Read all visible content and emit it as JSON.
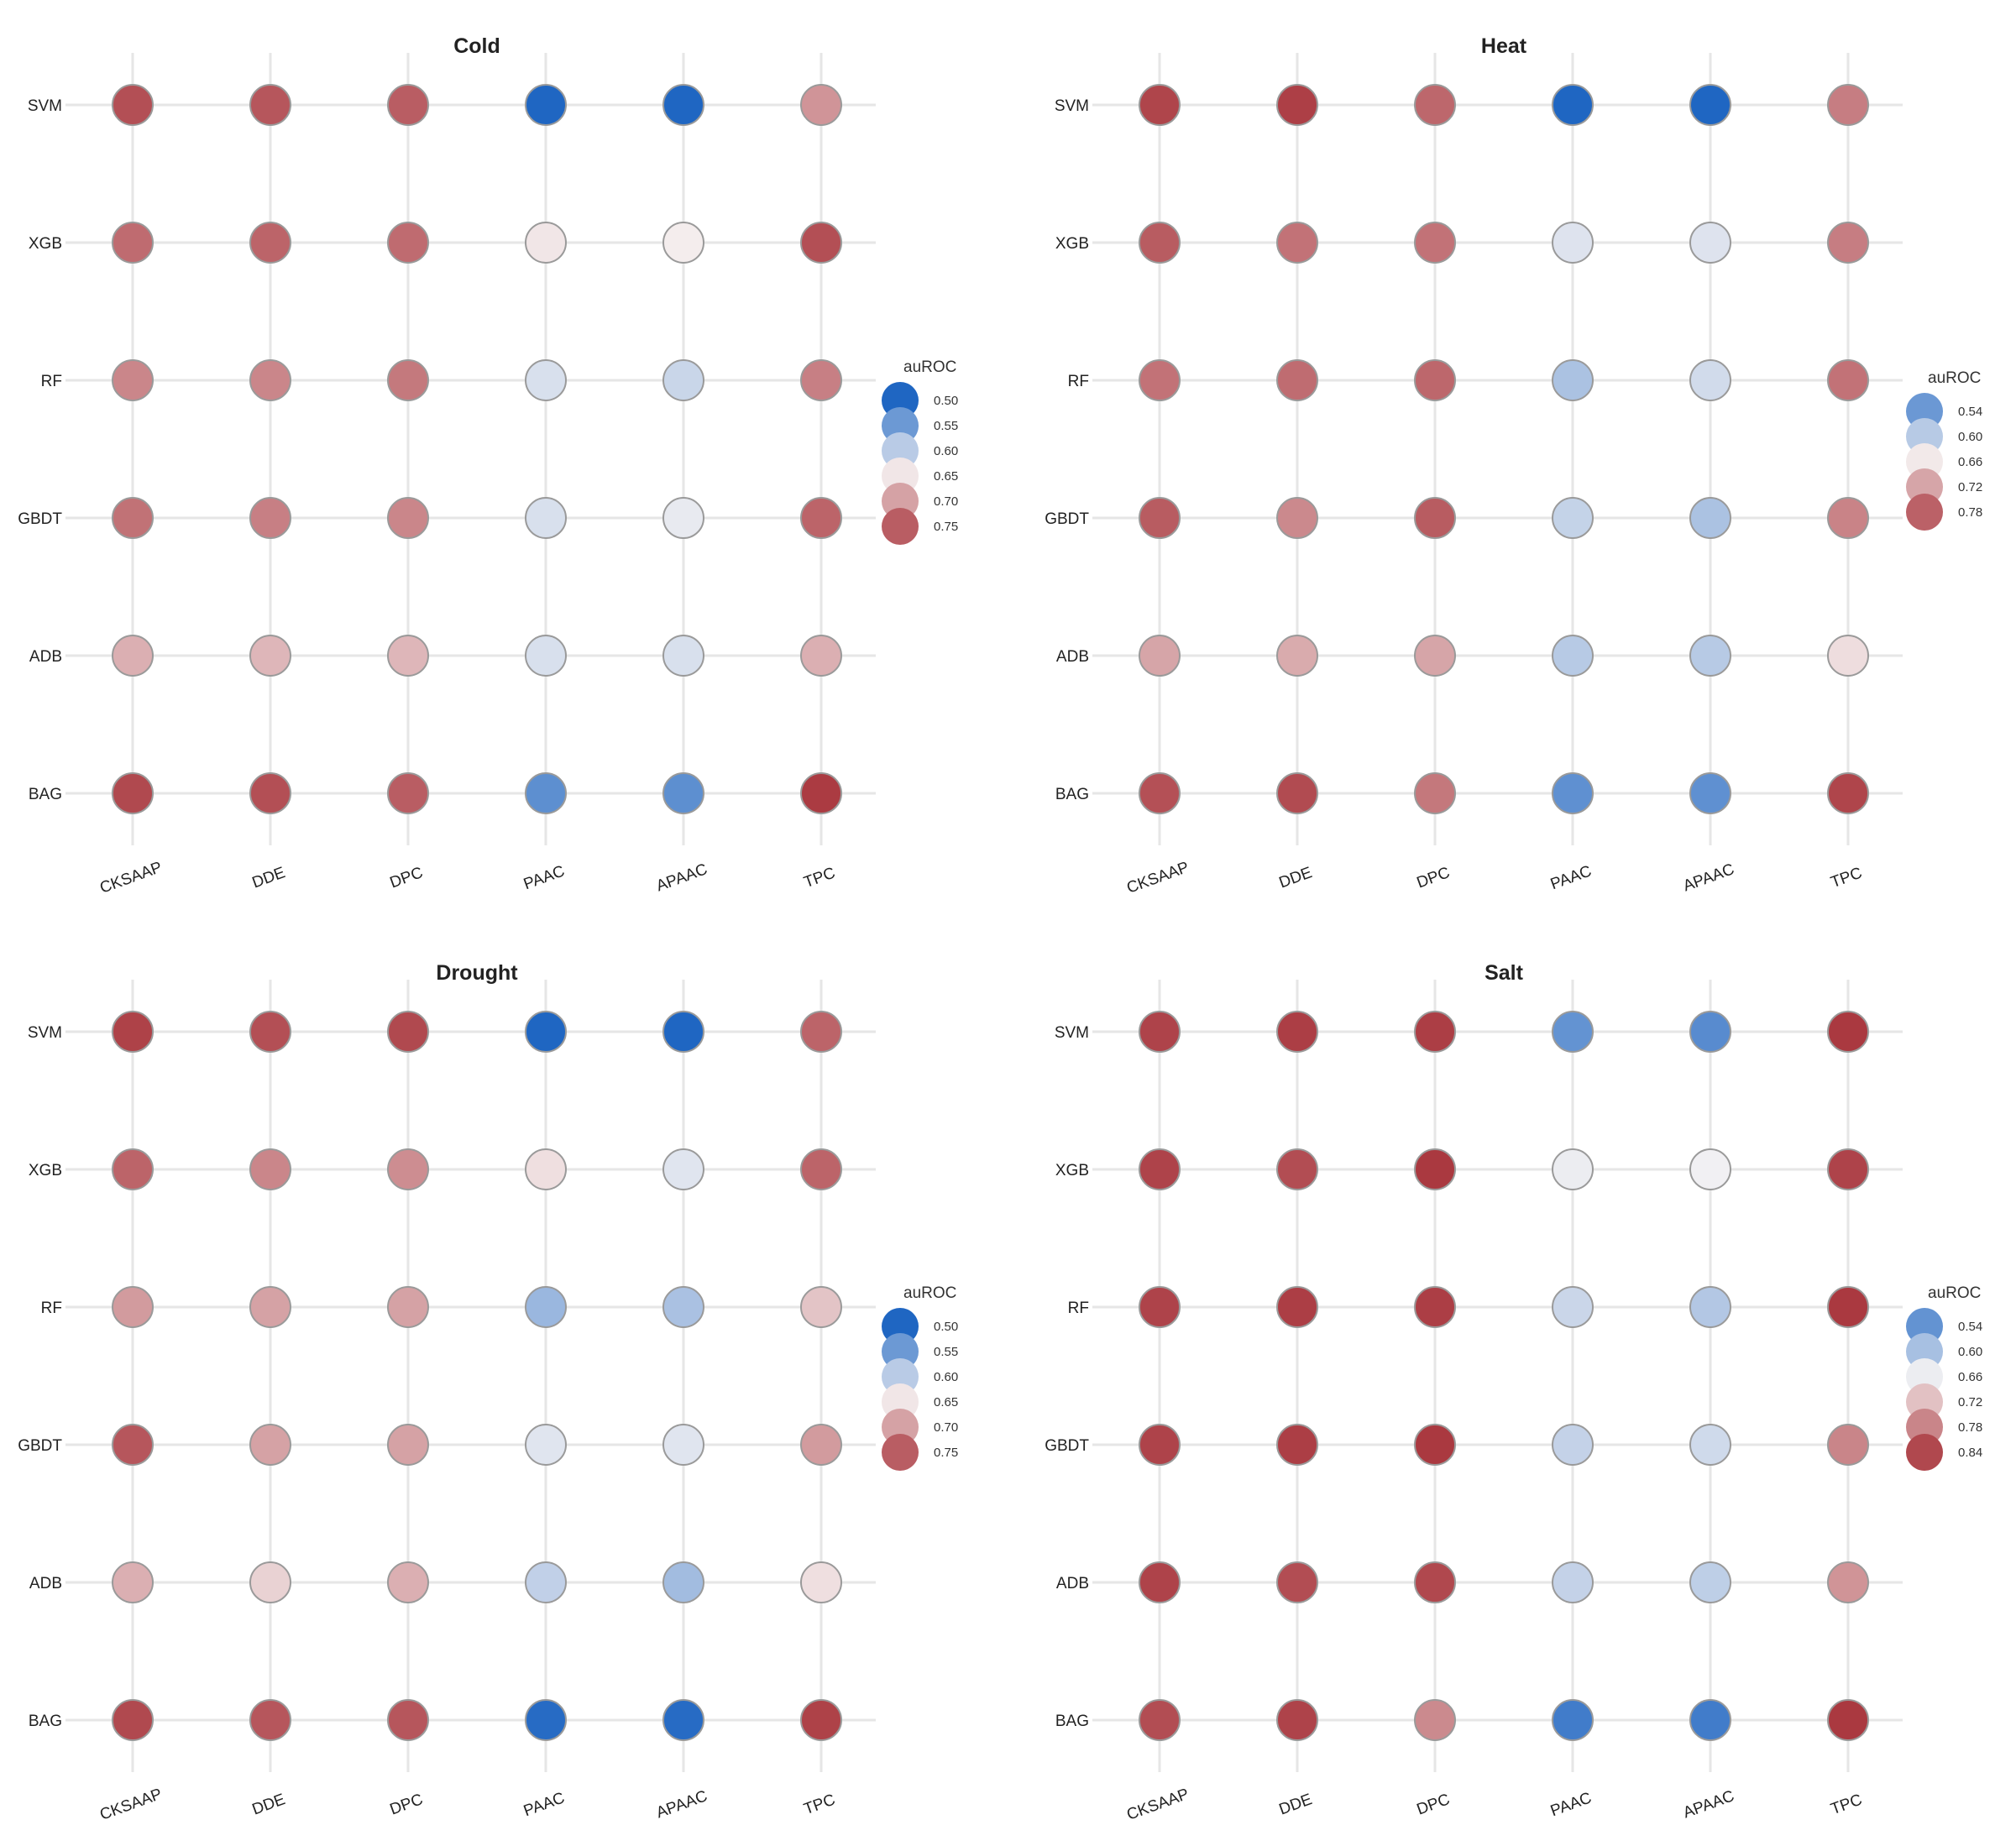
{
  "colors": {
    "low": "#1f66c2",
    "mid": "#f7f4f4",
    "high": "#a8343b",
    "grid": "#e6e6e6",
    "marker_edge": "#9a9a9a"
  },
  "chart_data": [
    {
      "type": "scatter",
      "title": "Cold",
      "xcategories": [
        "CKSAAP",
        "DDE",
        "DPC",
        "PAAC",
        "APAAC",
        "TPC"
      ],
      "ycategories": [
        "SVM",
        "XGB",
        "RF",
        "GBDT",
        "ADB",
        "BAG"
      ],
      "values": [
        [
          0.76,
          0.755,
          0.75,
          0.5,
          0.5,
          0.71
        ],
        [
          0.74,
          0.745,
          0.74,
          0.65,
          0.645,
          0.76
        ],
        [
          0.72,
          0.72,
          0.73,
          0.62,
          0.61,
          0.725
        ],
        [
          0.735,
          0.725,
          0.72,
          0.62,
          0.63,
          0.745
        ],
        [
          0.69,
          0.685,
          0.685,
          0.62,
          0.62,
          0.69
        ],
        [
          0.765,
          0.76,
          0.75,
          0.54,
          0.54,
          0.775
        ]
      ],
      "color_range": [
        0.5,
        0.78
      ],
      "legend": {
        "title": "auROC",
        "ticks": [
          "0.50",
          "0.55",
          "0.60",
          "0.65",
          "0.70",
          "0.75"
        ],
        "position": "right"
      }
    },
    {
      "type": "scatter",
      "title": "Heat",
      "xcategories": [
        "CKSAAP",
        "DDE",
        "DPC",
        "PAAC",
        "APAAC",
        "TPC"
      ],
      "ycategories": [
        "SVM",
        "XGB",
        "RF",
        "GBDT",
        "ADB",
        "BAG"
      ],
      "values": [
        [
          0.805,
          0.81,
          0.775,
          0.48,
          0.48,
          0.755
        ],
        [
          0.785,
          0.765,
          0.765,
          0.63,
          0.63,
          0.755
        ],
        [
          0.765,
          0.77,
          0.775,
          0.59,
          0.62,
          0.765
        ],
        [
          0.785,
          0.745,
          0.785,
          0.61,
          0.59,
          0.75
        ],
        [
          0.72,
          0.715,
          0.72,
          0.6,
          0.6,
          0.67
        ],
        [
          0.795,
          0.8,
          0.76,
          0.53,
          0.53,
          0.805
        ]
      ],
      "color_range": [
        0.48,
        0.82
      ],
      "legend": {
        "title": "auROC",
        "ticks": [
          "0.54",
          "0.60",
          "0.66",
          "0.72",
          "0.78"
        ],
        "position": "right"
      }
    },
    {
      "type": "scatter",
      "title": "Drought",
      "xcategories": [
        "CKSAAP",
        "DDE",
        "DPC",
        "PAAC",
        "APAAC",
        "TPC"
      ],
      "ycategories": [
        "SVM",
        "XGB",
        "RF",
        "GBDT",
        "ADB",
        "BAG"
      ],
      "values": [
        [
          0.77,
          0.76,
          0.765,
          0.5,
          0.5,
          0.745
        ],
        [
          0.745,
          0.72,
          0.715,
          0.655,
          0.625,
          0.745
        ],
        [
          0.705,
          0.7,
          0.7,
          0.58,
          0.59,
          0.675
        ],
        [
          0.755,
          0.7,
          0.7,
          0.625,
          0.625,
          0.705
        ],
        [
          0.69,
          0.665,
          0.69,
          0.605,
          0.585,
          0.655
        ],
        [
          0.765,
          0.755,
          0.755,
          0.505,
          0.505,
          0.77
        ]
      ],
      "color_range": [
        0.5,
        0.78
      ],
      "legend": {
        "title": "auROC",
        "ticks": [
          "0.50",
          "0.55",
          "0.60",
          "0.65",
          "0.70",
          "0.75"
        ],
        "position": "right"
      }
    },
    {
      "type": "scatter",
      "title": "Salt",
      "xcategories": [
        "CKSAAP",
        "DDE",
        "DPC",
        "PAAC",
        "APAAC",
        "TPC"
      ],
      "ycategories": [
        "SVM",
        "XGB",
        "RF",
        "GBDT",
        "ADB",
        "BAG"
      ],
      "values": [
        [
          0.845,
          0.85,
          0.85,
          0.54,
          0.53,
          0.855
        ],
        [
          0.845,
          0.835,
          0.855,
          0.66,
          0.665,
          0.845
        ],
        [
          0.845,
          0.85,
          0.85,
          0.63,
          0.61,
          0.855
        ],
        [
          0.845,
          0.85,
          0.855,
          0.625,
          0.635,
          0.78
        ],
        [
          0.845,
          0.835,
          0.84,
          0.625,
          0.62,
          0.765
        ],
        [
          0.835,
          0.845,
          0.775,
          0.51,
          0.51,
          0.855
        ]
      ],
      "color_range": [
        0.48,
        0.86
      ],
      "legend": {
        "title": "auROC",
        "ticks": [
          "0.54",
          "0.60",
          "0.66",
          "0.72",
          "0.78",
          "0.84"
        ],
        "position": "right"
      }
    }
  ]
}
